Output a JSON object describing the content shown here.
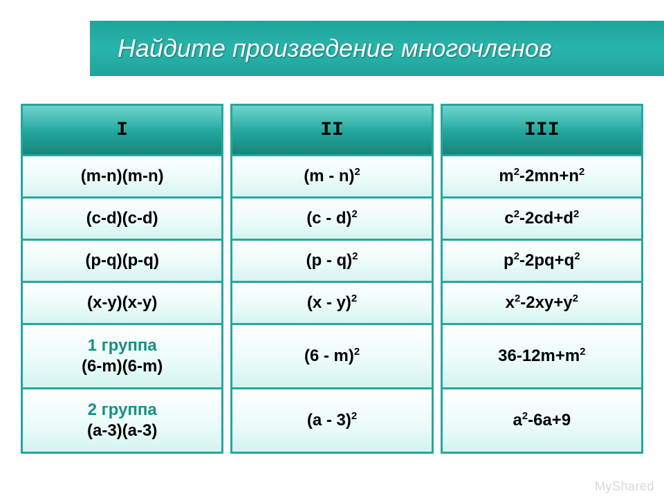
{
  "title": "Найдите произведение многочленов",
  "columns": [
    {
      "header": "I",
      "rows": [
        "(m-n)(m-n)",
        "(c-d)(c-d)",
        "(p-q)(p-q)",
        "(x-y)(x-y)"
      ]
    },
    {
      "header": "II",
      "rows": [
        "(m - n)<sup>2</sup>",
        "(c - d)<sup>2</sup>",
        "(p - q)<sup>2</sup>",
        "(x - y)<sup>2</sup>"
      ]
    },
    {
      "header": "III",
      "rows": [
        "m<sup>2</sup>-2mn+n<sup>2</sup>",
        "c<sup>2</sup>-2cd+d<sup>2</sup>",
        "p<sup>2</sup>-2pq+q<sup>2</sup>",
        "x<sup>2</sup>-2xy+y<sup>2</sup>"
      ]
    }
  ],
  "group_rows": [
    {
      "label": "1 группа",
      "cells": [
        "(6-m)(6-m)",
        "(6 - m)<sup>2</sup>",
        "36-12m+m<sup>2</sup>"
      ]
    },
    {
      "label": "2 группа",
      "cells": [
        "(a-3)(a-3)",
        "(a - 3)<sup>2</sup>",
        "a<sup>2</sup>-6a+9"
      ]
    }
  ],
  "colors": {
    "teal_border": "#24a79e",
    "header_grad_top": "#6fd4ce",
    "header_grad_bot": "#18857e",
    "cell_bg_top": "#ffffff",
    "cell_bg_bot": "#d4f3f0",
    "title_bg": "#1fa39a",
    "title_text": "#ffffff",
    "group_label": "#149087",
    "watermark": "#d8d8d8"
  },
  "fontsize": {
    "title": 36,
    "header": 28,
    "cell": 24
  },
  "watermark": "MyShared"
}
